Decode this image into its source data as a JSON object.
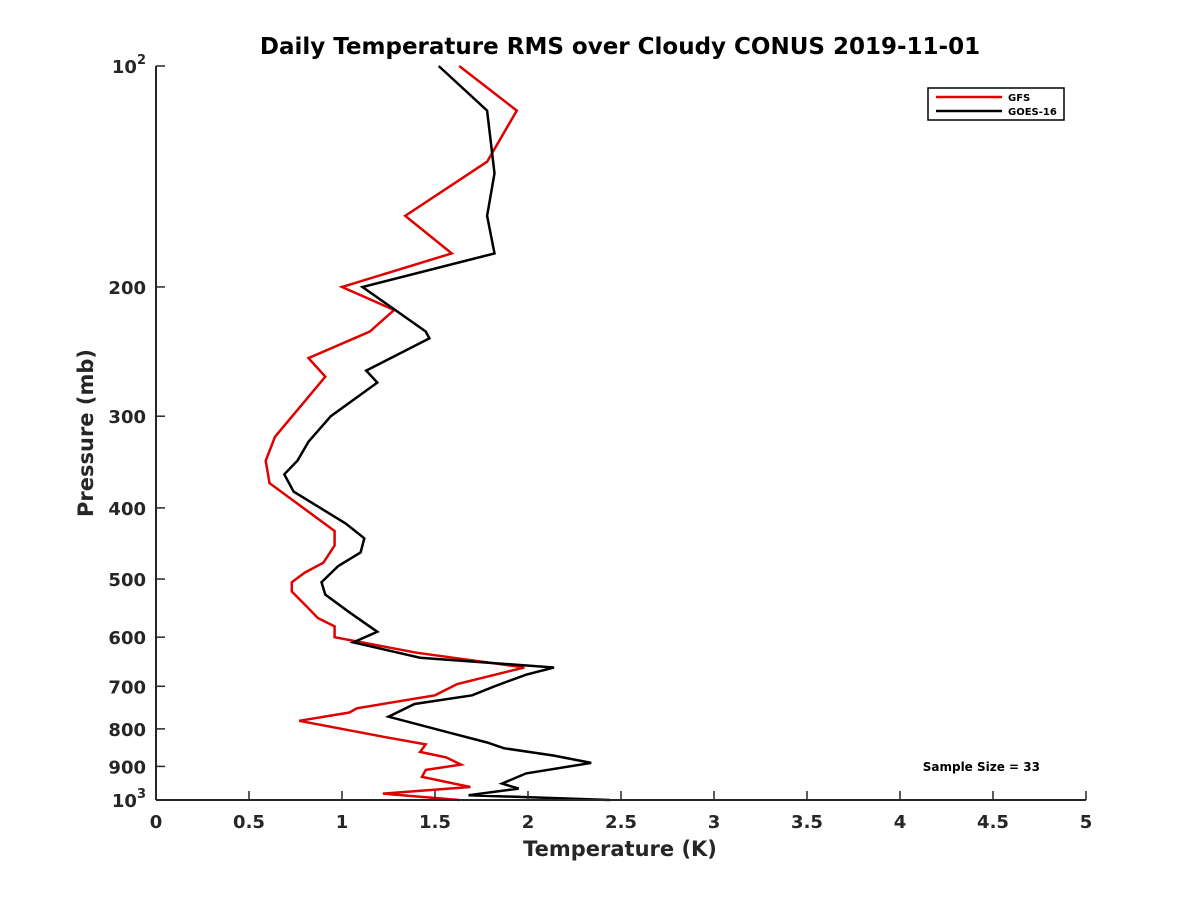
{
  "chart_data": {
    "type": "line",
    "title": "Daily Temperature RMS over Cloudy CONUS 2019-11-01",
    "xlabel": "Temperature (K)",
    "ylabel": "Pressure (mb)",
    "xlim": [
      0,
      5
    ],
    "ylim": [
      100,
      1000
    ],
    "y_scale": "log",
    "y_reversed": true,
    "grid": false,
    "legend_position": "top-right",
    "x_ticks": [
      0,
      0.5,
      1,
      1.5,
      2,
      2.5,
      3,
      3.5,
      4,
      4.5,
      5
    ],
    "x_tick_labels": [
      "0",
      "0.5",
      "1",
      "1.5",
      "2",
      "2.5",
      "3",
      "3.5",
      "4",
      "4.5",
      "5"
    ],
    "y_ticks": [
      100,
      200,
      300,
      400,
      500,
      600,
      700,
      800,
      900,
      1000
    ],
    "y_tick_labels": [
      {
        "base": "10",
        "exp": "2"
      },
      {
        "base": "200",
        "exp": ""
      },
      {
        "base": "300",
        "exp": ""
      },
      {
        "base": "400",
        "exp": ""
      },
      {
        "base": "500",
        "exp": ""
      },
      {
        "base": "600",
        "exp": ""
      },
      {
        "base": "700",
        "exp": ""
      },
      {
        "base": "800",
        "exp": ""
      },
      {
        "base": "900",
        "exp": ""
      },
      {
        "base": "10",
        "exp": "3"
      }
    ],
    "annotation": "Sample Size = 33",
    "series": [
      {
        "name": "GFS",
        "color": "#e00000",
        "points": [
          [
            1.63,
            100
          ],
          [
            1.94,
            115
          ],
          [
            1.78,
            135
          ],
          [
            1.34,
            160
          ],
          [
            1.59,
            180
          ],
          [
            1.0,
            200
          ],
          [
            1.28,
            215
          ],
          [
            1.15,
            230
          ],
          [
            0.82,
            250
          ],
          [
            0.91,
            265
          ],
          [
            0.64,
            320
          ],
          [
            0.59,
            345
          ],
          [
            0.61,
            370
          ],
          [
            0.96,
            430
          ],
          [
            0.96,
            450
          ],
          [
            0.9,
            475
          ],
          [
            0.8,
            490
          ],
          [
            0.73,
            505
          ],
          [
            0.73,
            520
          ],
          [
            0.81,
            545
          ],
          [
            0.87,
            565
          ],
          [
            0.96,
            580
          ],
          [
            0.96,
            600
          ],
          [
            1.4,
            630
          ],
          [
            1.98,
            660
          ],
          [
            1.62,
            695
          ],
          [
            1.5,
            720
          ],
          [
            1.08,
            750
          ],
          [
            1.04,
            760
          ],
          [
            0.77,
            780
          ],
          [
            1.22,
            820
          ],
          [
            1.45,
            840
          ],
          [
            1.42,
            860
          ],
          [
            1.56,
            875
          ],
          [
            1.64,
            895
          ],
          [
            1.45,
            910
          ],
          [
            1.43,
            930
          ],
          [
            1.69,
            960
          ],
          [
            1.22,
            980
          ],
          [
            1.63,
            1000
          ]
        ]
      },
      {
        "name": "GOES-16",
        "color": "#000000",
        "points": [
          [
            1.52,
            100
          ],
          [
            1.78,
            115
          ],
          [
            1.82,
            140
          ],
          [
            1.78,
            160
          ],
          [
            1.82,
            180
          ],
          [
            1.11,
            200
          ],
          [
            1.45,
            230
          ],
          [
            1.47,
            235
          ],
          [
            1.13,
            260
          ],
          [
            1.19,
            270
          ],
          [
            0.94,
            300
          ],
          [
            0.82,
            325
          ],
          [
            0.76,
            345
          ],
          [
            0.69,
            360
          ],
          [
            0.74,
            380
          ],
          [
            1.02,
            420
          ],
          [
            1.12,
            440
          ],
          [
            1.1,
            460
          ],
          [
            0.98,
            480
          ],
          [
            0.89,
            505
          ],
          [
            0.91,
            525
          ],
          [
            1.04,
            555
          ],
          [
            1.19,
            590
          ],
          [
            1.06,
            610
          ],
          [
            1.42,
            640
          ],
          [
            2.14,
            660
          ],
          [
            1.99,
            675
          ],
          [
            1.82,
            700
          ],
          [
            1.7,
            720
          ],
          [
            1.39,
            740
          ],
          [
            1.25,
            770
          ],
          [
            1.58,
            810
          ],
          [
            1.78,
            835
          ],
          [
            1.87,
            850
          ],
          [
            2.14,
            870
          ],
          [
            2.34,
            890
          ],
          [
            1.99,
            920
          ],
          [
            1.86,
            950
          ],
          [
            1.95,
            965
          ],
          [
            1.68,
            985
          ],
          [
            2.44,
            1000
          ]
        ]
      }
    ]
  }
}
